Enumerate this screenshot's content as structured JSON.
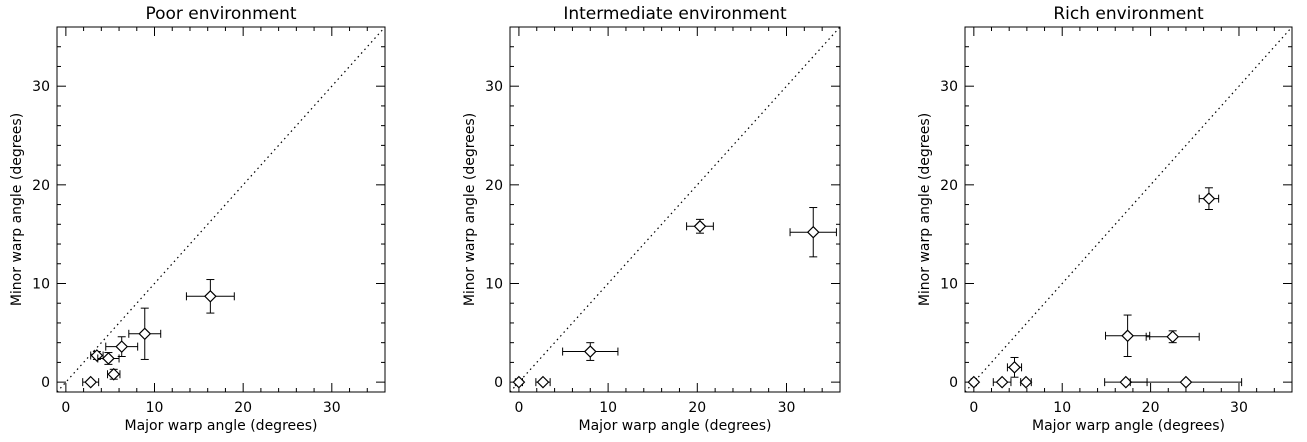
{
  "chart_data": [
    {
      "type": "scatter",
      "title": "Poor environment",
      "xlabel": "Major warp angle (degrees)",
      "ylabel": "Minor warp angle (degrees)",
      "xlim": [
        -1,
        36
      ],
      "ylim": [
        -1,
        36
      ],
      "xticks": [
        0,
        10,
        20,
        30
      ],
      "yticks": [
        0,
        10,
        20,
        30
      ],
      "reference_line": "y = x (dotted)",
      "points": [
        {
          "x": 2.8,
          "y": 0.0,
          "xerr": 0.9,
          "yerr": 0.0
        },
        {
          "x": 3.5,
          "y": 2.7,
          "xerr": 0.7,
          "yerr": 0.4
        },
        {
          "x": 4.8,
          "y": 2.4,
          "xerr": 1.2,
          "yerr": 0.6
        },
        {
          "x": 5.4,
          "y": 0.8,
          "xerr": 0.7,
          "yerr": 0.5
        },
        {
          "x": 6.3,
          "y": 3.6,
          "xerr": 1.8,
          "yerr": 1.0
        },
        {
          "x": 8.9,
          "y": 4.9,
          "xerr": 1.8,
          "yerr": 2.6
        },
        {
          "x": 16.3,
          "y": 8.7,
          "xerr": 2.7,
          "yerr": 1.7
        }
      ]
    },
    {
      "type": "scatter",
      "title": "Intermediate environment",
      "xlabel": "Major warp angle (degrees)",
      "ylabel": "Minor warp angle (degrees)",
      "xlim": [
        -1,
        36
      ],
      "ylim": [
        -1,
        36
      ],
      "xticks": [
        0,
        10,
        20,
        30
      ],
      "yticks": [
        0,
        10,
        20,
        30
      ],
      "reference_line": "y = x (dotted)",
      "points": [
        {
          "x": 0.0,
          "y": 0.0,
          "xerr": 0.4,
          "yerr": 0.0
        },
        {
          "x": 2.7,
          "y": 0.0,
          "xerr": 0.8,
          "yerr": 0.0
        },
        {
          "x": 8.0,
          "y": 3.1,
          "xerr": 3.1,
          "yerr": 0.9
        },
        {
          "x": 20.3,
          "y": 15.8,
          "xerr": 1.5,
          "yerr": 0.7
        },
        {
          "x": 33.0,
          "y": 15.2,
          "xerr": 2.6,
          "yerr": 2.5
        }
      ]
    },
    {
      "type": "scatter",
      "title": "Rich environment",
      "xlabel": "Major warp angle (degrees)",
      "ylabel": "Minor warp angle (degrees)",
      "xlim": [
        -1,
        36
      ],
      "ylim": [
        -1,
        36
      ],
      "xticks": [
        0,
        10,
        20,
        30
      ],
      "yticks": [
        0,
        10,
        20,
        30
      ],
      "reference_line": "y = x (dotted)",
      "points": [
        {
          "x": 0.0,
          "y": 0.0,
          "xerr": 0.3,
          "yerr": 0.0
        },
        {
          "x": 3.2,
          "y": 0.0,
          "xerr": 1.0,
          "yerr": 0.0
        },
        {
          "x": 4.6,
          "y": 1.5,
          "xerr": 0.8,
          "yerr": 1.0
        },
        {
          "x": 5.9,
          "y": 0.0,
          "xerr": 0.6,
          "yerr": 0.0
        },
        {
          "x": 17.4,
          "y": 4.7,
          "xerr": 2.5,
          "yerr": 2.1
        },
        {
          "x": 22.5,
          "y": 4.6,
          "xerr": 3.0,
          "yerr": 0.6
        },
        {
          "x": 17.2,
          "y": 0.0,
          "xerr": 2.4,
          "yerr": 0.0
        },
        {
          "x": 24.0,
          "y": 0.0,
          "xerr": 6.3,
          "yerr": 0.0
        },
        {
          "x": 26.6,
          "y": 18.6,
          "xerr": 1.1,
          "yerr": 1.1
        }
      ]
    }
  ]
}
